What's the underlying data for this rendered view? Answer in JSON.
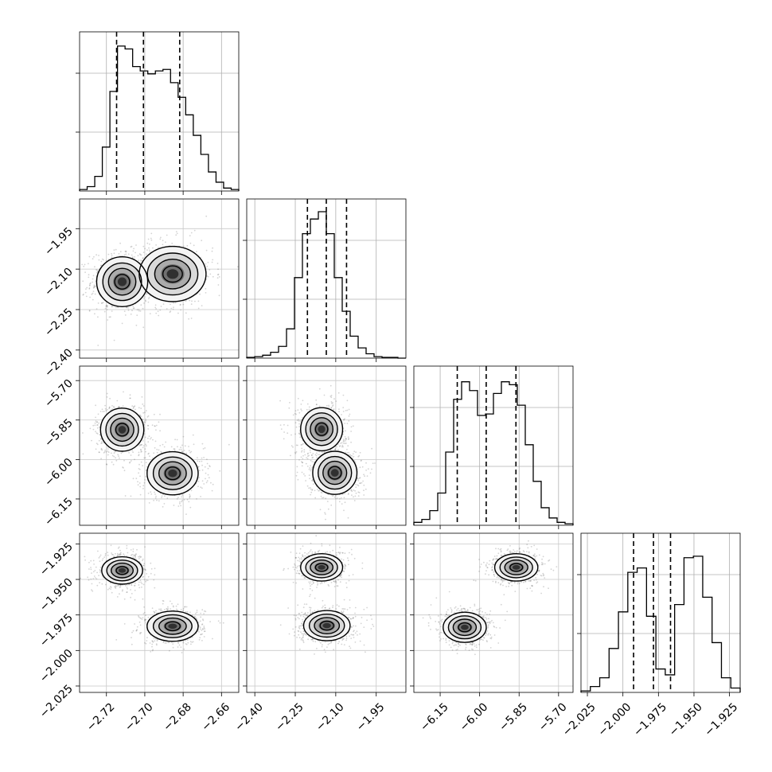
{
  "chart_data": {
    "type": "corner",
    "grid": true,
    "parameters": [
      {
        "ticks": [
          -2.72,
          -2.7,
          -2.68,
          -2.66
        ],
        "tick_labels": [
          "−2.72",
          "−2.70",
          "−2.68",
          "−2.66"
        ],
        "range": [
          -2.734,
          -2.651
        ],
        "quantiles": [
          -2.7147,
          -2.7007,
          -2.6818
        ],
        "hist_levels": [
          0.01,
          0.03,
          0.1,
          0.3,
          0.68,
          0.99,
          0.97,
          0.85,
          0.82,
          0.8,
          0.82,
          0.83,
          0.74,
          0.64,
          0.52,
          0.38,
          0.25,
          0.13,
          0.06,
          0.02,
          0.01
        ]
      },
      {
        "ticks": [
          -2.4,
          -2.25,
          -2.1,
          -1.95
        ],
        "tick_labels": [
          "−2.40",
          "−2.25",
          "−2.10",
          "−1.95"
        ],
        "range": [
          -2.43,
          -1.84
        ],
        "quantiles": [
          -2.205,
          -2.135,
          -2.06
        ],
        "hist_levels": [
          0.005,
          0.01,
          0.02,
          0.04,
          0.08,
          0.2,
          0.55,
          0.85,
          0.95,
          1.0,
          0.85,
          0.55,
          0.32,
          0.15,
          0.07,
          0.03,
          0.01,
          0.005,
          0.005,
          0.0
        ]
      },
      {
        "ticks": [
          -6.15,
          -6.0,
          -5.85,
          -5.7
        ],
        "tick_labels": [
          "−6.15",
          "−6.00",
          "−5.85",
          "−5.70"
        ],
        "range": [
          -6.25,
          -5.645
        ],
        "quantiles": [
          -6.085,
          -5.975,
          -5.862
        ],
        "hist_levels": [
          0.02,
          0.04,
          0.1,
          0.22,
          0.5,
          0.86,
          0.98,
          0.92,
          0.75,
          0.76,
          0.9,
          0.98,
          0.96,
          0.82,
          0.55,
          0.3,
          0.12,
          0.05,
          0.02,
          0.01
        ]
      },
      {
        "ticks": [
          -2.025,
          -2.0,
          -1.975,
          -1.95,
          -1.925
        ],
        "tick_labels": [
          "−2.025",
          "−2.000",
          "−1.975",
          "−1.950",
          "−1.925"
        ],
        "range": [
          -2.0295,
          -1.9175
        ],
        "quantiles": [
          -1.9925,
          -1.9785,
          -1.9665
        ],
        "hist_levels": [
          0.01,
          0.04,
          0.1,
          0.3,
          0.55,
          0.82,
          0.85,
          0.52,
          0.16,
          0.12,
          0.6,
          0.92,
          0.93,
          0.65,
          0.34,
          0.1,
          0.03
        ]
      }
    ],
    "pairs": [
      {
        "x": 0,
        "y": 1,
        "modes": [
          {
            "mx": -2.7118,
            "my": -2.1469,
            "sx": 0.0065,
            "sy": 0.045,
            "w": 0.55
          },
          {
            "mx": -2.6855,
            "my": -2.1183,
            "sx": 0.0085,
            "sy": 0.05,
            "w": 0.45
          }
        ]
      },
      {
        "x": 0,
        "y": 2,
        "modes": [
          {
            "mx": -2.7118,
            "my": -5.8868,
            "sx": 0.0055,
            "sy": 0.04,
            "w": 0.5
          },
          {
            "mx": -2.6855,
            "my": -6.0526,
            "sx": 0.0065,
            "sy": 0.04,
            "w": 0.5
          }
        ]
      },
      {
        "x": 0,
        "y": 3,
        "modes": [
          {
            "mx": -2.7118,
            "my": -1.9437,
            "sx": 0.0052,
            "sy": 0.0047,
            "w": 0.5
          },
          {
            "mx": -2.6855,
            "my": -1.9829,
            "sx": 0.0065,
            "sy": 0.0052,
            "w": 0.5
          }
        ]
      },
      {
        "x": 1,
        "y": 2,
        "modes": [
          {
            "mx": -2.1525,
            "my": -5.8849,
            "sx": 0.038,
            "sy": 0.04,
            "w": 0.5
          },
          {
            "mx": -2.1034,
            "my": -6.0506,
            "sx": 0.04,
            "sy": 0.04,
            "w": 0.5
          }
        ]
      },
      {
        "x": 1,
        "y": 3,
        "modes": [
          {
            "mx": -2.1525,
            "my": -1.9415,
            "sx": 0.038,
            "sy": 0.0047,
            "w": 0.5
          },
          {
            "mx": -2.1329,
            "my": -1.9825,
            "sx": 0.042,
            "sy": 0.0052,
            "w": 0.5
          }
        ]
      },
      {
        "x": 2,
        "y": 3,
        "modes": [
          {
            "mx": -5.8606,
            "my": -1.9415,
            "sx": 0.04,
            "sy": 0.0047,
            "w": 0.5
          },
          {
            "mx": -6.0566,
            "my": -1.9837,
            "sx": 0.04,
            "sy": 0.0052,
            "w": 0.5
          }
        ]
      }
    ]
  }
}
